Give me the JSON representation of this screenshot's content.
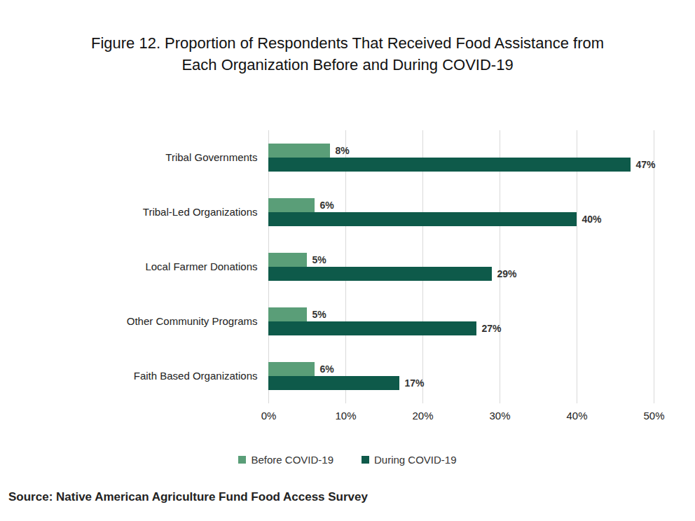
{
  "chart_data": {
    "type": "bar",
    "orientation": "horizontal",
    "title": "Figure 12. Proportion of Respondents That Received Food Assistance from Each Organization Before and During COVID-19",
    "source": "Source: Native American Agriculture Fund Food Access Survey",
    "categories": [
      "Tribal Governments",
      "Tribal-Led Organizations",
      "Local Farmer Donations",
      "Other Community Programs",
      "Faith Based Organizations"
    ],
    "series": [
      {
        "name": "Before COVID-19",
        "color": "#5a9e78",
        "values": [
          8,
          6,
          5,
          5,
          6
        ],
        "value_labels": [
          "8%",
          "6%",
          "5%",
          "5%",
          "6%"
        ]
      },
      {
        "name": "During COVID-19",
        "color": "#0e5a4a",
        "values": [
          47,
          40,
          29,
          27,
          17
        ],
        "value_labels": [
          "47%",
          "40%",
          "29%",
          "27%",
          "17%"
        ]
      }
    ],
    "xlim": [
      0,
      50
    ],
    "xticks": [
      {
        "value": 0,
        "label": "0%"
      },
      {
        "value": 10,
        "label": "10%"
      },
      {
        "value": 20,
        "label": "20%"
      },
      {
        "value": 30,
        "label": "30%"
      },
      {
        "value": 40,
        "label": "40%"
      },
      {
        "value": 50,
        "label": "50%"
      }
    ],
    "grid": true,
    "legend": "bottom",
    "data_labels": true
  }
}
